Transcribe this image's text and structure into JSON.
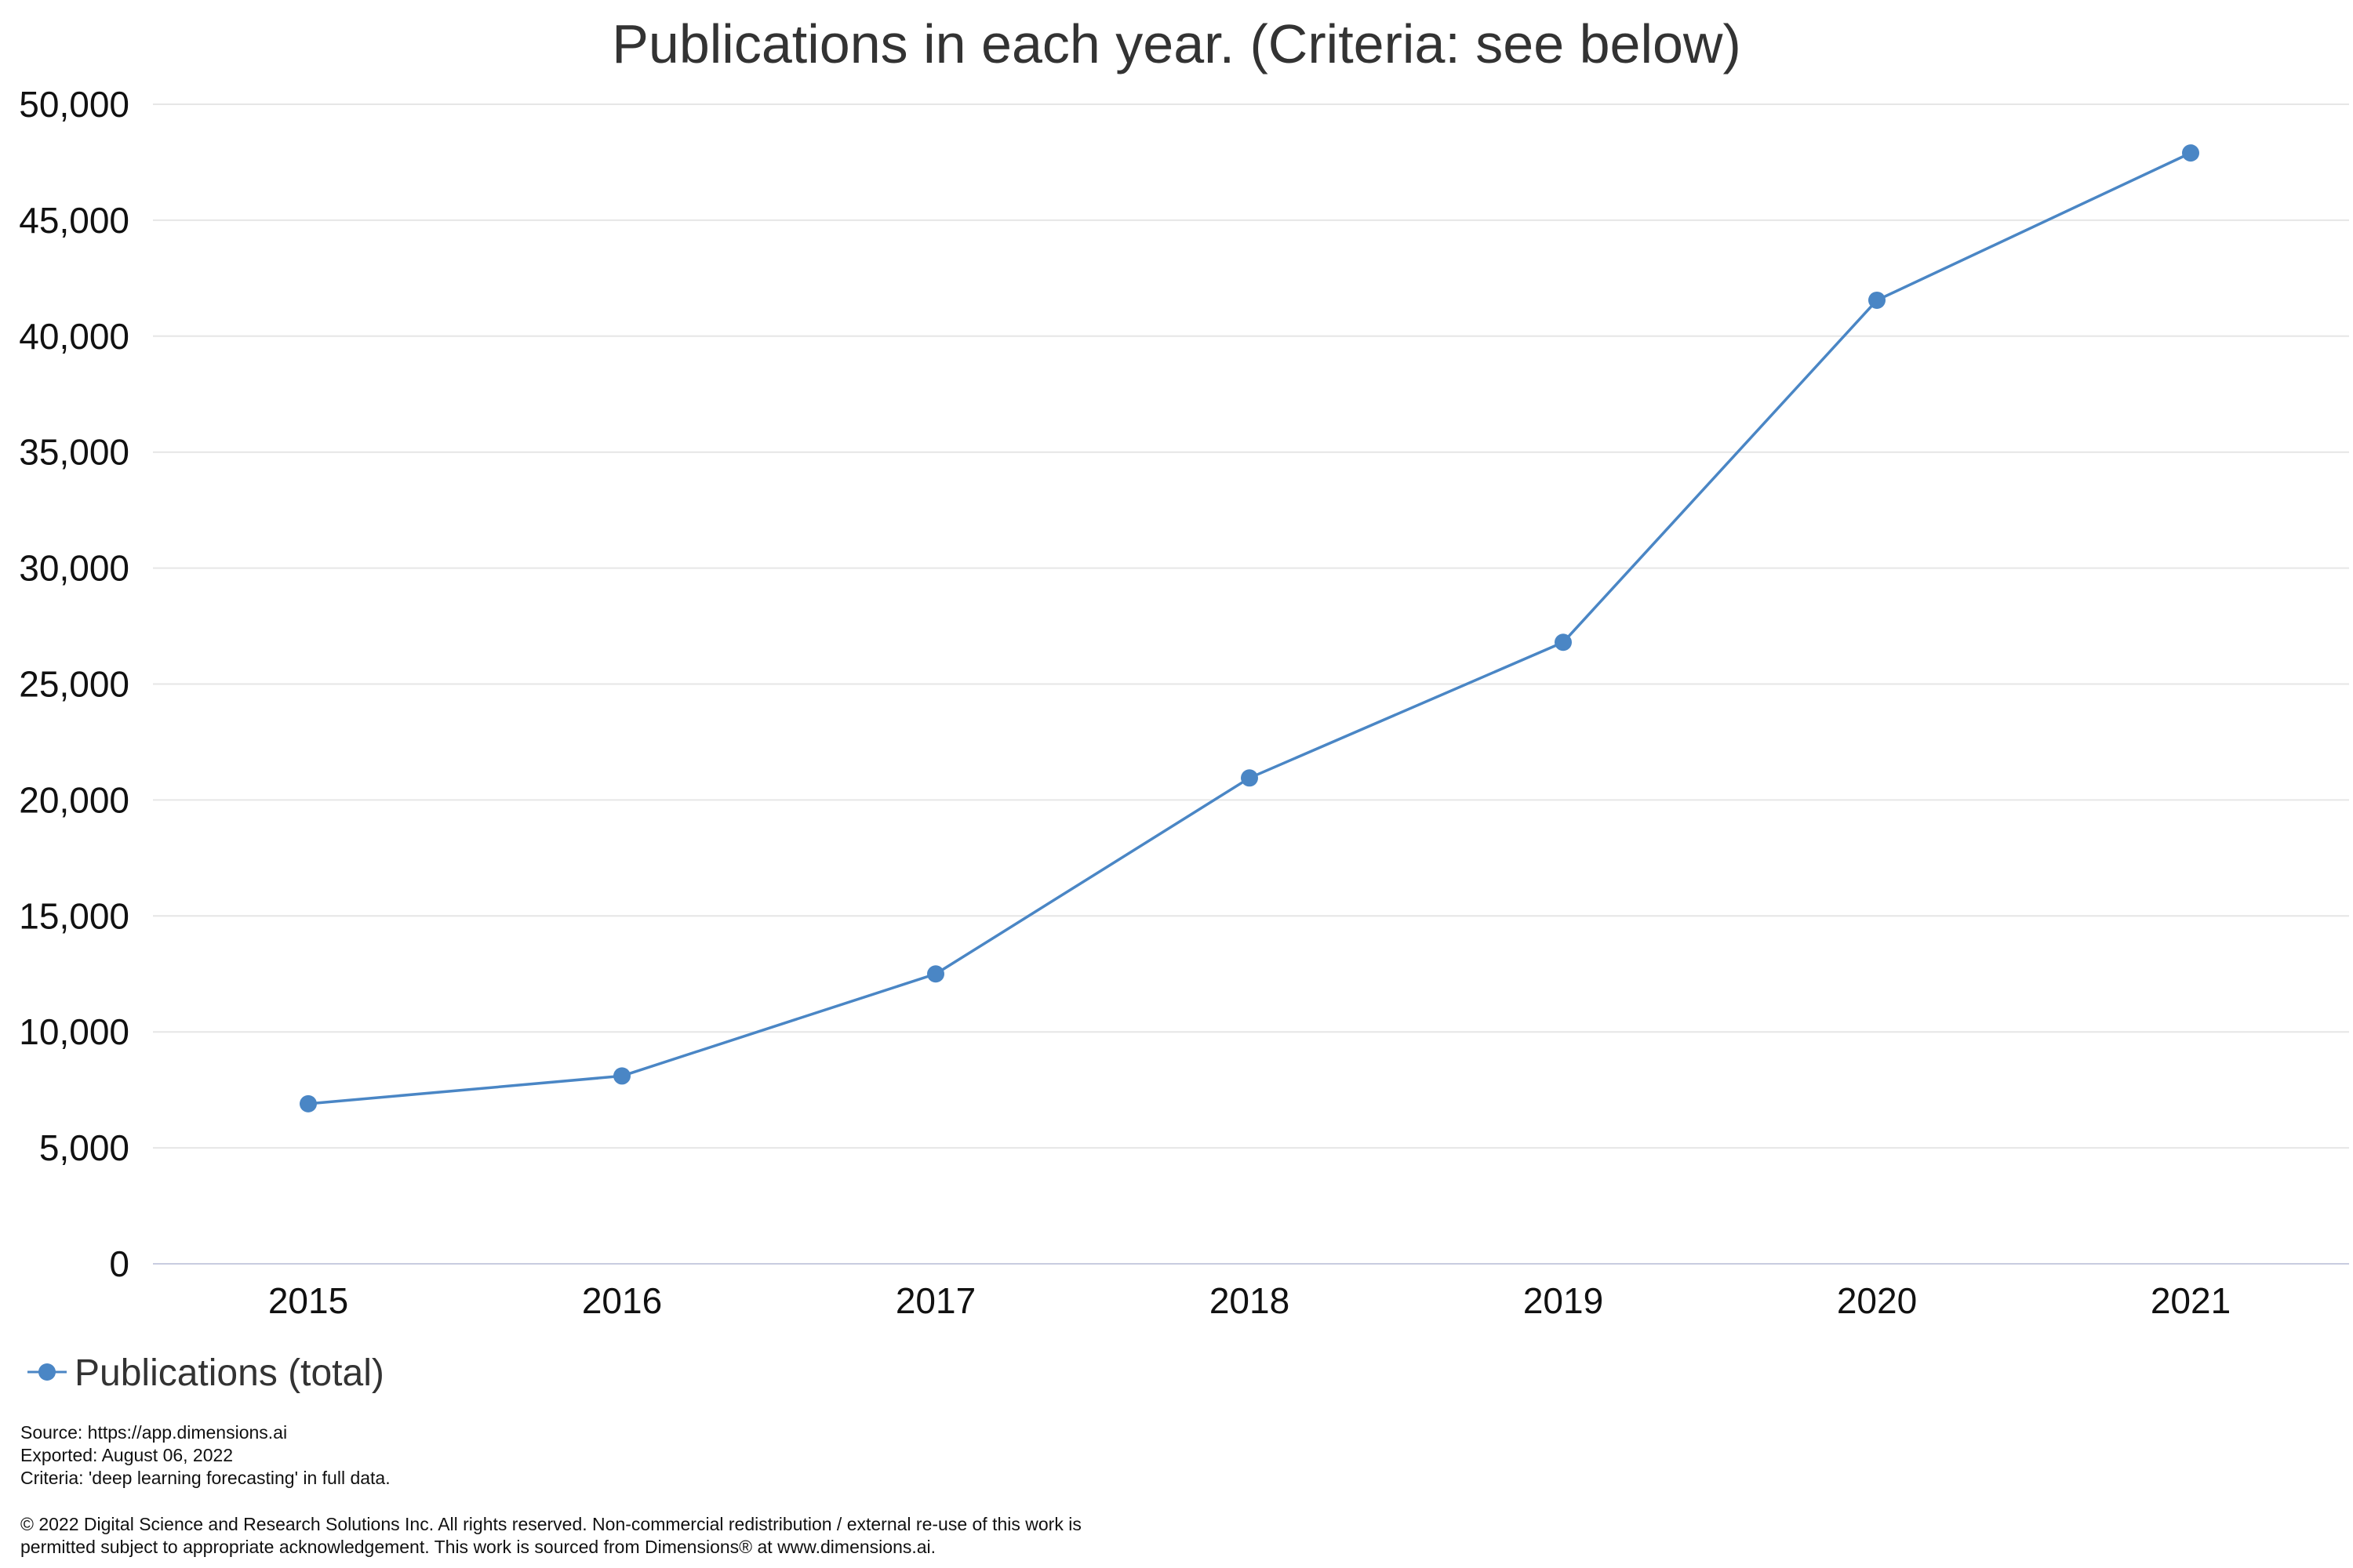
{
  "chart_data": {
    "type": "line",
    "title": "Publications in each year. (Criteria: see below)",
    "xlabel": "",
    "ylabel": "",
    "categories": [
      "2015",
      "2016",
      "2017",
      "2018",
      "2019",
      "2020",
      "2021"
    ],
    "series": [
      {
        "name": "Publications (total)",
        "values": [
          6900,
          8100,
          12500,
          20950,
          26800,
          41550,
          47900
        ],
        "color": "#4a86c5"
      }
    ],
    "ylim": [
      0,
      50000
    ],
    "yticks": [
      0,
      5000,
      10000,
      15000,
      20000,
      25000,
      30000,
      35000,
      40000,
      45000,
      50000
    ],
    "ytick_labels": [
      "0",
      "5,000",
      "10,000",
      "15,000",
      "20,000",
      "25,000",
      "30,000",
      "35,000",
      "40,000",
      "45,000",
      "50,000"
    ],
    "grid": true,
    "legend_position": "bottom-left"
  },
  "footer": {
    "source": "Source: https://app.dimensions.ai",
    "exported": "Exported: August 06, 2022",
    "criteria": "Criteria: 'deep learning forecasting' in full data.",
    "copyright_line1": "© 2022 Digital Science and Research Solutions Inc. All rights reserved. Non-commercial redistribution / external re-use of this work is",
    "copyright_line2": "permitted subject to appropriate acknowledgement. This work is sourced from Dimensions® at www.dimensions.ai."
  }
}
